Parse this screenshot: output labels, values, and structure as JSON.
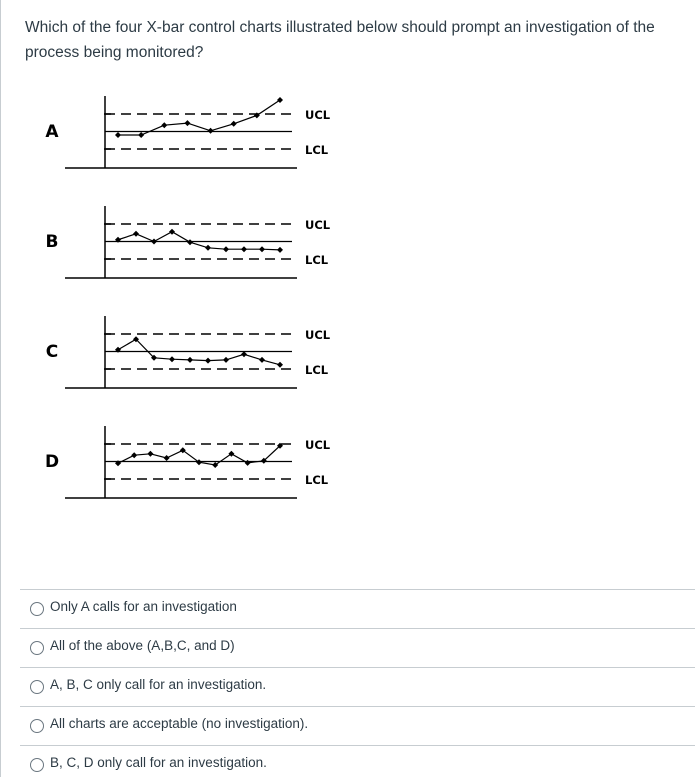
{
  "question": {
    "text": "Which of the four X-bar control charts illustrated below should prompt an investigation of the process being monitored?"
  },
  "figure": {
    "charts": [
      {
        "letter": "A",
        "ucl_label": "UCL",
        "lcl_label": "LCL",
        "points": [
          0.4,
          0.4,
          0.68,
          0.74,
          0.52,
          0.72,
          0.96,
          1.4
        ]
      },
      {
        "letter": "B",
        "ucl_label": "UCL",
        "lcl_label": "LCL",
        "points": [
          0.55,
          0.72,
          0.5,
          0.78,
          0.48,
          0.32,
          0.28,
          0.28,
          0.28,
          0.26
        ]
      },
      {
        "letter": "C",
        "ucl_label": "UCL",
        "lcl_label": "LCL",
        "points": [
          0.55,
          0.85,
          0.32,
          0.28,
          0.26,
          0.24,
          0.26,
          0.42,
          0.26,
          0.12
        ]
      },
      {
        "letter": "D",
        "ucl_label": "UCL",
        "lcl_label": "LCL",
        "points": [
          0.45,
          0.68,
          0.72,
          0.6,
          0.82,
          0.48,
          0.4,
          0.72,
          0.46,
          0.52,
          0.95
        ]
      }
    ]
  },
  "answers": [
    {
      "label": "Only A calls for an investigation"
    },
    {
      "label": "All of the above (A,B,C, and D)"
    },
    {
      "label": "A, B, C only call for an investigation."
    },
    {
      "label": "All charts are acceptable (no investigation)."
    },
    {
      "label": "B, C, D only call for an investigation."
    }
  ]
}
